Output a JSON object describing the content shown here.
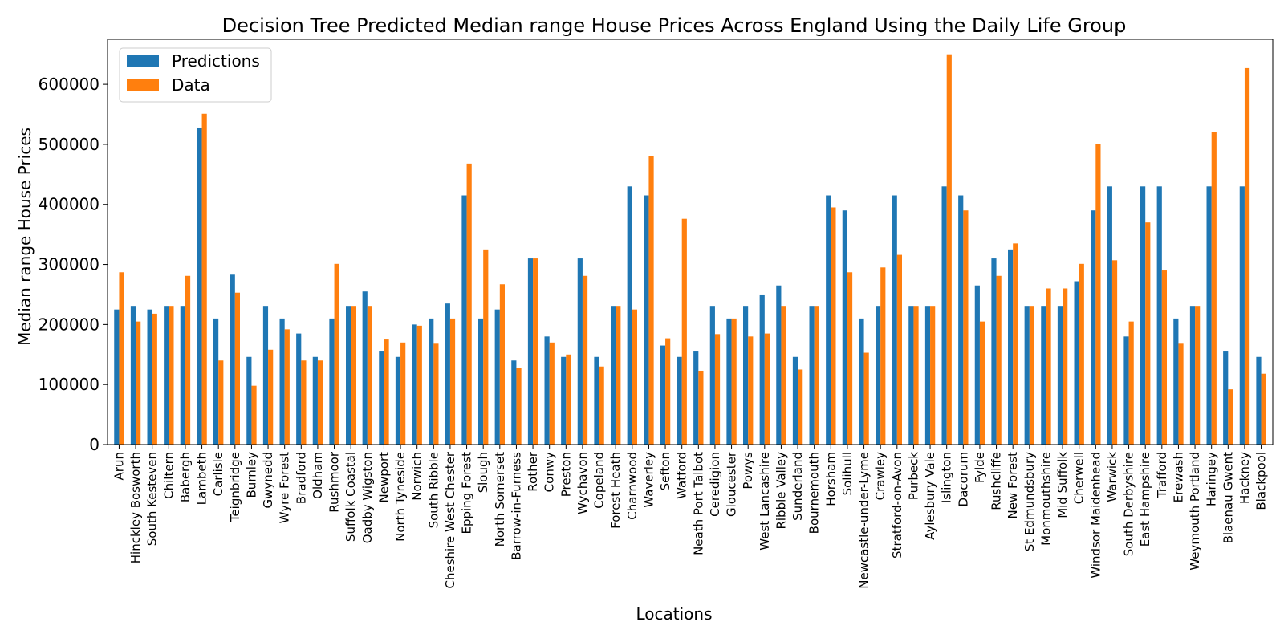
{
  "chart_data": {
    "type": "bar",
    "title": "Decision Tree Predicted Median range House Prices Across England Using the Daily Life Group",
    "xlabel": "Locations",
    "ylabel": "Median range House Prices",
    "ylim": [
      0,
      675000
    ],
    "yticks": [
      0,
      100000,
      200000,
      300000,
      400000,
      500000,
      600000
    ],
    "grid": false,
    "legend_position": "top-left",
    "categories": [
      "Arun",
      "Hinckley Bosworth",
      "South Kesteven",
      "Chiltern",
      "Babergh",
      "Lambeth",
      "Carlisle",
      "Teignbridge",
      "Burnley",
      "Gwynedd",
      "Wyre Forest",
      "Bradford",
      "Oldham",
      "Rushmoor",
      "Suffolk Coastal",
      "Oadby Wigston",
      "Newport",
      "North Tyneside",
      "Norwich",
      "South Ribble",
      "Cheshire West Chester",
      "Epping Forest",
      "Slough",
      "North Somerset",
      "Barrow-in-Furness",
      "Rother",
      "Conwy",
      "Preston",
      "Wychavon",
      "Copeland",
      "Forest Heath",
      "Charnwood",
      "Waverley",
      "Sefton",
      "Watford",
      "Neath Port Talbot",
      "Ceredigion",
      "Gloucester",
      "Powys",
      "West Lancashire",
      "Ribble Valley",
      "Sunderland",
      "Bournemouth",
      "Horsham",
      "Solihull",
      "Newcastle-under-Lyme",
      "Crawley",
      "Stratford-on-Avon",
      "Purbeck",
      "Aylesbury Vale",
      "Islington",
      "Dacorum",
      "Fylde",
      "Rushcliffe",
      "New Forest",
      "St Edmundsbury",
      "Monmouthshire",
      "Mid Suffolk",
      "Cherwell",
      "Windsor Maidenhead",
      "Warwick",
      "South Derbyshire",
      "East Hampshire",
      "Trafford",
      "Erewash",
      "Weymouth Portland",
      "Haringey",
      "Blaenau Gwent",
      "Hackney",
      "Blackpool"
    ],
    "series": [
      {
        "name": "Predictions",
        "color": "#1f77b4",
        "values": [
          225000,
          231000,
          225000,
          231000,
          231000,
          528000,
          210000,
          283000,
          146000,
          231000,
          210000,
          185000,
          146000,
          210000,
          231000,
          255000,
          155000,
          146000,
          200000,
          210000,
          235000,
          415000,
          210000,
          225000,
          140000,
          310000,
          180000,
          146000,
          310000,
          146000,
          231000,
          430000,
          415000,
          165000,
          146000,
          155000,
          231000,
          210000,
          231000,
          250000,
          265000,
          146000,
          231000,
          415000,
          390000,
          210000,
          231000,
          415000,
          231000,
          231000,
          430000,
          415000,
          265000,
          310000,
          325000,
          231000,
          231000,
          231000,
          272000,
          390000,
          430000,
          180000,
          430000,
          430000,
          210000,
          231000,
          430000,
          155000,
          430000,
          146000
        ]
      },
      {
        "name": "Data",
        "color": "#ff7f0e",
        "values": [
          287000,
          205000,
          218000,
          231000,
          281000,
          551000,
          140000,
          253000,
          98000,
          158000,
          192000,
          140000,
          140000,
          301000,
          231000,
          231000,
          175000,
          170000,
          198000,
          168000,
          210000,
          468000,
          325000,
          267000,
          127000,
          310000,
          170000,
          150000,
          281000,
          130000,
          231000,
          225000,
          480000,
          177000,
          376000,
          123000,
          184000,
          210000,
          180000,
          185000,
          231000,
          125000,
          231000,
          395000,
          287000,
          153000,
          295000,
          316000,
          231000,
          231000,
          650000,
          390000,
          205000,
          281000,
          335000,
          231000,
          260000,
          260000,
          301000,
          500000,
          307000,
          205000,
          370000,
          290000,
          168000,
          231000,
          520000,
          92000,
          627000,
          118000
        ]
      }
    ]
  }
}
